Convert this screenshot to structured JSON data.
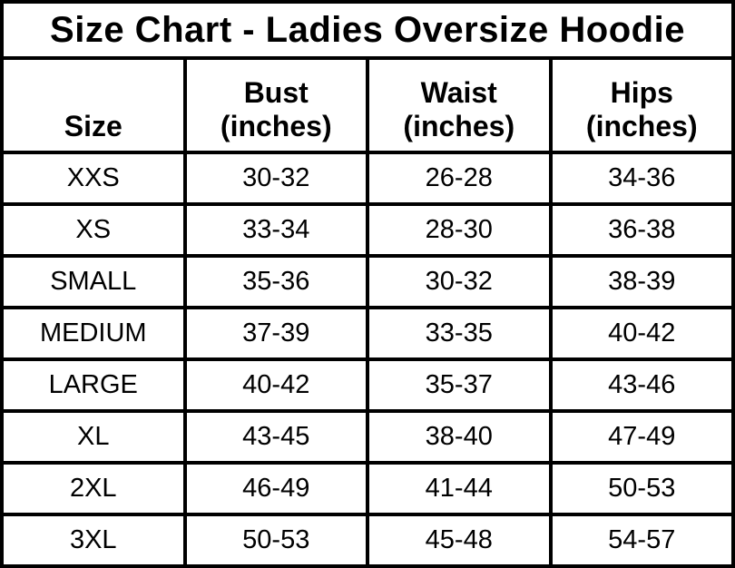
{
  "title": "Size Chart - Ladies Oversize Hoodie",
  "table": {
    "columns": [
      {
        "id": "size",
        "lines": [
          "Size"
        ]
      },
      {
        "id": "bust",
        "lines": [
          "Bust",
          "(inches)"
        ]
      },
      {
        "id": "waist",
        "lines": [
          "Waist",
          "(inches)"
        ]
      },
      {
        "id": "hips",
        "lines": [
          "Hips",
          "(inches)"
        ]
      }
    ],
    "rows": [
      {
        "size": "XXS",
        "bust": "30-32",
        "waist": "26-28",
        "hips": "34-36"
      },
      {
        "size": "XS",
        "bust": "33-34",
        "waist": "28-30",
        "hips": "36-38"
      },
      {
        "size": "SMALL",
        "bust": "35-36",
        "waist": "30-32",
        "hips": "38-39"
      },
      {
        "size": "MEDIUM",
        "bust": "37-39",
        "waist": "33-35",
        "hips": "40-42"
      },
      {
        "size": "LARGE",
        "bust": "40-42",
        "waist": "35-37",
        "hips": "43-46"
      },
      {
        "size": "XL",
        "bust": "43-45",
        "waist": "38-40",
        "hips": "47-49"
      },
      {
        "size": "2XL",
        "bust": "46-49",
        "waist": "41-44",
        "hips": "50-53"
      },
      {
        "size": "3XL",
        "bust": "50-53",
        "waist": "45-48",
        "hips": "54-57"
      }
    ]
  },
  "chart_data": {
    "type": "table",
    "title": "Size Chart - Ladies Oversize Hoodie",
    "columns": [
      "Size",
      "Bust (inches)",
      "Waist (inches)",
      "Hips (inches)"
    ],
    "rows": [
      [
        "XXS",
        "30-32",
        "26-28",
        "34-36"
      ],
      [
        "XS",
        "33-34",
        "28-30",
        "36-38"
      ],
      [
        "SMALL",
        "35-36",
        "30-32",
        "38-39"
      ],
      [
        "MEDIUM",
        "37-39",
        "33-35",
        "40-42"
      ],
      [
        "LARGE",
        "40-42",
        "35-37",
        "43-46"
      ],
      [
        "XL",
        "43-45",
        "38-40",
        "47-49"
      ],
      [
        "2XL",
        "46-49",
        "41-44",
        "50-53"
      ],
      [
        "3XL",
        "50-53",
        "45-48",
        "54-57"
      ]
    ]
  },
  "colors": {
    "border": "#000000",
    "text": "#000000",
    "background": "#ffffff"
  }
}
